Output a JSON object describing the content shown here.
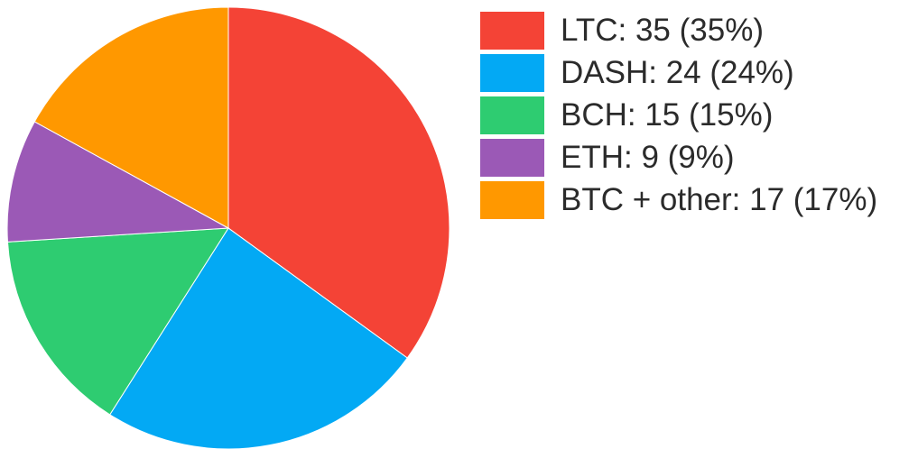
{
  "chart_data": {
    "type": "pie",
    "start_angle_deg": 0,
    "direction": "clockwise",
    "slices": [
      {
        "label": "LTC",
        "value": 35,
        "percent": "35%",
        "color": "#F44336",
        "legend_text": "LTC: 35 (35%)"
      },
      {
        "label": "DASH",
        "value": 24,
        "percent": "24%",
        "color": "#03A9F4",
        "legend_text": "DASH: 24 (24%)"
      },
      {
        "label": "BCH",
        "value": 15,
        "percent": "15%",
        "color": "#2ECC71",
        "legend_text": "BCH: 15 (15%)"
      },
      {
        "label": "ETH",
        "value": 9,
        "percent": "9%",
        "color": "#9B59B6",
        "legend_text": "ETH: 9 (9%)"
      },
      {
        "label": "BTC + other",
        "value": 17,
        "percent": "17%",
        "color": "#FF9800",
        "legend_text": "BTC + other: 17 (17%)"
      }
    ],
    "legend_placement": "right"
  }
}
